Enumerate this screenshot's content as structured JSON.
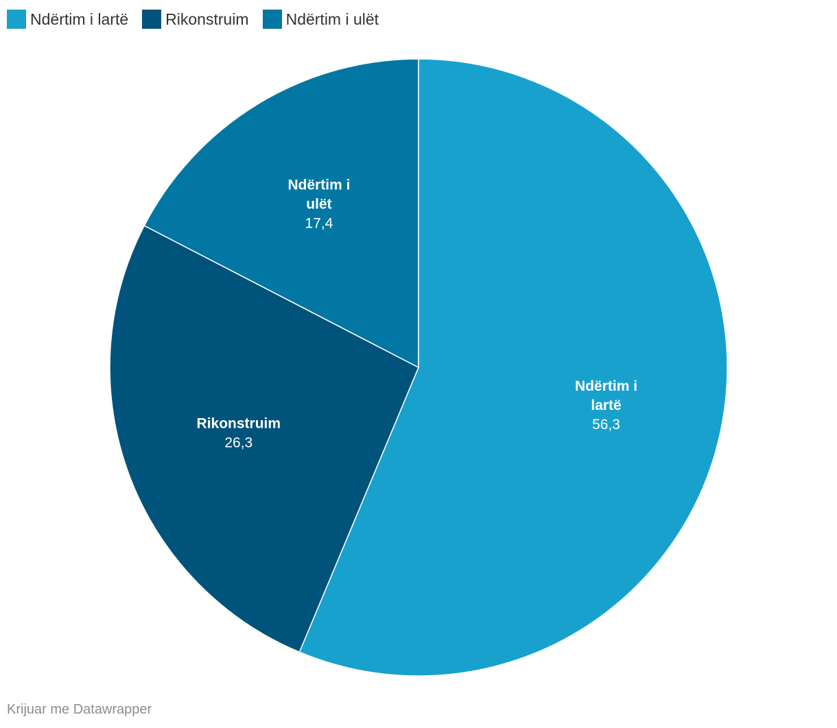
{
  "chart_data": {
    "type": "pie",
    "slices": [
      {
        "name": "Ndërtim i lartë",
        "label_lines": [
          "Ndërtim i",
          "lartë"
        ],
        "value": 56.3,
        "value_label": "56,3",
        "color": "#18a1cd"
      },
      {
        "name": "Rikonstruim",
        "label_lines": [
          "Rikonstruim"
        ],
        "value": 26.3,
        "value_label": "26,3",
        "color": "#00537a"
      },
      {
        "name": "Ndërtim i ulët",
        "label_lines": [
          "Ndërtim i",
          "ulët"
        ],
        "value": 17.4,
        "value_label": "17,4",
        "color": "#0277a3"
      }
    ],
    "legend_position": "top-left"
  },
  "legend": {
    "items": [
      {
        "label": "Ndërtim i lartë",
        "color": "#18a1cd"
      },
      {
        "label": "Rikonstruim",
        "color": "#00537a"
      },
      {
        "label": "Ndërtim i ulët",
        "color": "#0277a3"
      }
    ]
  },
  "footer": {
    "credit": "Krijuar me Datawrapper"
  }
}
